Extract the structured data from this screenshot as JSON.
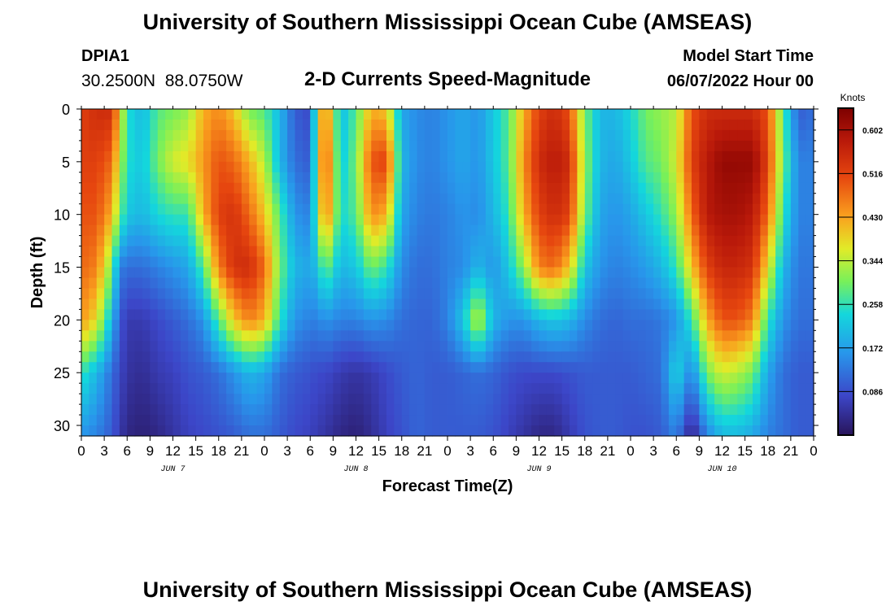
{
  "header": {
    "title": "University of Southern Mississippi Ocean Cube (AMSEAS)",
    "station_id": "DPIA1",
    "station_coords": "30.2500N  88.0750W",
    "plot_title": "2-D Currents Speed-Magnitude",
    "model_start_label": "Model Start Time",
    "model_start_value": "06/07/2022 Hour 00"
  },
  "footer": {
    "title": "University of Southern Mississippi Ocean Cube (AMSEAS)"
  },
  "chart_data": {
    "type": "heatmap",
    "title": "2-D Currents Speed-Magnitude",
    "xlabel": "Forecast Time(Z)",
    "ylabel": "Depth (ft)",
    "x_range_hours": [
      0,
      96
    ],
    "ylim": [
      0,
      31
    ],
    "y_inverted": true,
    "x_tick_labels": [
      "0",
      "3",
      "6",
      "9",
      "12",
      "15",
      "18",
      "21",
      "0",
      "3",
      "6",
      "9",
      "12",
      "15",
      "18",
      "21",
      "0",
      "3",
      "6",
      "9",
      "12",
      "15",
      "18",
      "21",
      "0",
      "3",
      "6",
      "9",
      "12",
      "15",
      "18",
      "21",
      "0"
    ],
    "y_ticks": [
      0,
      5,
      10,
      15,
      20,
      25,
      30
    ],
    "date_labels": [
      {
        "label": "JUN 7",
        "hour": 12
      },
      {
        "label": "JUN 8",
        "hour": 36
      },
      {
        "label": "JUN 9",
        "hour": 60
      },
      {
        "label": "JUN 10",
        "hour": 84
      }
    ],
    "colorbar": {
      "title": "Knots",
      "ticks": [
        "0.602",
        "0.516",
        "0.430",
        "0.344",
        "0.258",
        "0.172",
        "0.086"
      ],
      "vmin": 0.0,
      "vmax": 0.645
    },
    "depths_ft": [
      0,
      5,
      10,
      15,
      20,
      25,
      31
    ],
    "times_hours": [
      0,
      2,
      4,
      5,
      6,
      8,
      10,
      12,
      14,
      16,
      18,
      20,
      22,
      24,
      26,
      28,
      30,
      31,
      32,
      34,
      36,
      38,
      40,
      42,
      44,
      46,
      48,
      50,
      52,
      54,
      56,
      58,
      60,
      62,
      64,
      66,
      68,
      70,
      72,
      74,
      76,
      78,
      80,
      82,
      84,
      86,
      88,
      90,
      92,
      94,
      96
    ],
    "speed_knots": [
      [
        0.52,
        0.55,
        0.55,
        0.4,
        0.25,
        0.2,
        0.28,
        0.3,
        0.32,
        0.42,
        0.45,
        0.4,
        0.3,
        0.28,
        0.2,
        0.1,
        0.08,
        0.35,
        0.48,
        0.2,
        0.28,
        0.42,
        0.4,
        0.18,
        0.15,
        0.14,
        0.16,
        0.18,
        0.16,
        0.22,
        0.28,
        0.42,
        0.52,
        0.55,
        0.5,
        0.3,
        0.2,
        0.2,
        0.24,
        0.3,
        0.32,
        0.34,
        0.5,
        0.55,
        0.55,
        0.55,
        0.55,
        0.5,
        0.28,
        0.1,
        0.12
      ],
      [
        0.52,
        0.52,
        0.48,
        0.35,
        0.25,
        0.22,
        0.3,
        0.36,
        0.38,
        0.44,
        0.5,
        0.48,
        0.42,
        0.34,
        0.2,
        0.12,
        0.1,
        0.35,
        0.52,
        0.22,
        0.3,
        0.5,
        0.52,
        0.2,
        0.15,
        0.14,
        0.16,
        0.18,
        0.16,
        0.22,
        0.28,
        0.45,
        0.55,
        0.58,
        0.55,
        0.32,
        0.2,
        0.18,
        0.22,
        0.28,
        0.3,
        0.36,
        0.52,
        0.58,
        0.62,
        0.62,
        0.62,
        0.52,
        0.3,
        0.14,
        0.14
      ],
      [
        0.5,
        0.5,
        0.42,
        0.3,
        0.22,
        0.2,
        0.24,
        0.26,
        0.26,
        0.42,
        0.52,
        0.54,
        0.48,
        0.4,
        0.28,
        0.16,
        0.14,
        0.32,
        0.48,
        0.24,
        0.28,
        0.45,
        0.42,
        0.18,
        0.14,
        0.13,
        0.14,
        0.16,
        0.15,
        0.2,
        0.26,
        0.42,
        0.52,
        0.55,
        0.52,
        0.3,
        0.18,
        0.16,
        0.18,
        0.22,
        0.26,
        0.32,
        0.48,
        0.58,
        0.6,
        0.6,
        0.58,
        0.48,
        0.26,
        0.14,
        0.14
      ],
      [
        0.48,
        0.46,
        0.3,
        0.14,
        0.12,
        0.12,
        0.14,
        0.16,
        0.18,
        0.28,
        0.46,
        0.54,
        0.55,
        0.48,
        0.3,
        0.2,
        0.18,
        0.22,
        0.3,
        0.2,
        0.22,
        0.3,
        0.26,
        0.15,
        0.12,
        0.12,
        0.14,
        0.15,
        0.2,
        0.16,
        0.22,
        0.32,
        0.46,
        0.48,
        0.4,
        0.22,
        0.16,
        0.14,
        0.15,
        0.17,
        0.2,
        0.26,
        0.4,
        0.52,
        0.56,
        0.56,
        0.54,
        0.38,
        0.2,
        0.13,
        0.13
      ],
      [
        0.44,
        0.38,
        0.2,
        0.1,
        0.06,
        0.06,
        0.08,
        0.1,
        0.12,
        0.16,
        0.28,
        0.4,
        0.46,
        0.42,
        0.26,
        0.16,
        0.14,
        0.14,
        0.16,
        0.14,
        0.14,
        0.16,
        0.15,
        0.12,
        0.11,
        0.11,
        0.14,
        0.22,
        0.36,
        0.2,
        0.16,
        0.16,
        0.2,
        0.22,
        0.2,
        0.15,
        0.12,
        0.11,
        0.12,
        0.12,
        0.13,
        0.16,
        0.26,
        0.42,
        0.5,
        0.5,
        0.46,
        0.26,
        0.16,
        0.12,
        0.12
      ],
      [
        0.26,
        0.2,
        0.12,
        0.08,
        0.05,
        0.04,
        0.06,
        0.07,
        0.09,
        0.1,
        0.12,
        0.16,
        0.2,
        0.18,
        0.12,
        0.1,
        0.09,
        0.08,
        0.08,
        0.06,
        0.05,
        0.06,
        0.08,
        0.1,
        0.11,
        0.1,
        0.1,
        0.11,
        0.12,
        0.11,
        0.09,
        0.08,
        0.08,
        0.08,
        0.09,
        0.1,
        0.1,
        0.1,
        0.1,
        0.11,
        0.12,
        0.24,
        0.14,
        0.3,
        0.36,
        0.34,
        0.3,
        0.18,
        0.12,
        0.1,
        0.1
      ],
      [
        0.16,
        0.14,
        0.1,
        0.06,
        0.03,
        0.02,
        0.03,
        0.05,
        0.07,
        0.08,
        0.09,
        0.1,
        0.12,
        0.12,
        0.1,
        0.08,
        0.07,
        0.06,
        0.05,
        0.03,
        0.02,
        0.04,
        0.07,
        0.09,
        0.11,
        0.1,
        0.1,
        0.1,
        0.1,
        0.09,
        0.07,
        0.05,
        0.03,
        0.03,
        0.06,
        0.09,
        0.1,
        0.1,
        0.09,
        0.09,
        0.1,
        0.14,
        0.02,
        0.14,
        0.2,
        0.2,
        0.18,
        0.14,
        0.12,
        0.1,
        0.1
      ]
    ]
  }
}
